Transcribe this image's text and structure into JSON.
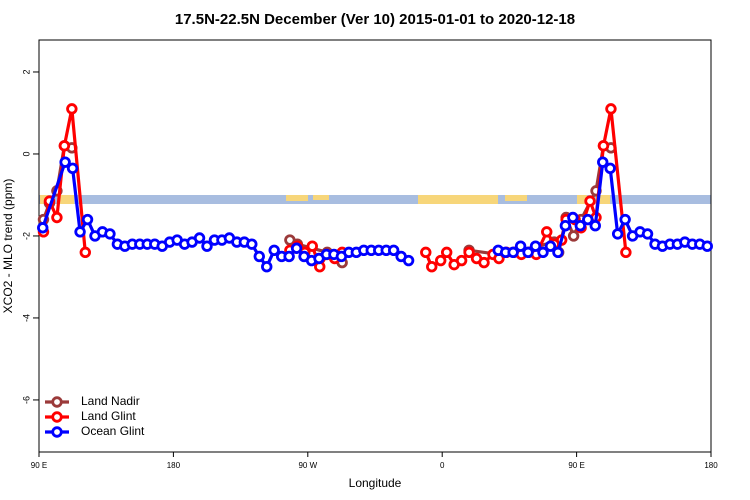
{
  "chart_data": {
    "type": "line",
    "title": "17.5N-22.5N December (Ver 10)   2015-01-01 to 2020-12-18",
    "x_label": "Longitude",
    "y_label": "XCO2 - MLO trend (ppm)",
    "xlim": [
      90,
      540
    ],
    "ylim": [
      -7.27,
      2.78
    ],
    "xticks": [
      {
        "value": 90,
        "label": "90 E"
      },
      {
        "value": 180,
        "label": "180"
      },
      {
        "value": 270,
        "label": "90 W"
      },
      {
        "value": 360,
        "label": "0"
      },
      {
        "value": 450,
        "label": "90 E"
      },
      {
        "value": 540,
        "label": "180"
      }
    ],
    "yticks": [
      -6,
      -4,
      -2,
      0,
      2
    ],
    "legend": "bottom-left",
    "series": [
      {
        "name": "Land Nadir",
        "color": "#9b3a3a",
        "x": [
          93,
          97,
          102,
          107,
          112,
          null,
          258,
          263,
          283,
          293,
          null,
          378,
          398,
          413,
          435,
          438,
          443,
          448,
          453,
          463,
          468,
          473
        ],
        "values": [
          -1.6,
          -1.2,
          -0.9,
          0.2,
          0.15,
          null,
          -2.1,
          -2.2,
          -2.4,
          -2.65,
          null,
          -2.35,
          -2.45,
          -2.35,
          -2.15,
          -2.4,
          -1.55,
          -2.0,
          -1.6,
          -0.9,
          0.2,
          0.15
        ]
      },
      {
        "name": "Land Glint",
        "color": "#ff0000",
        "x": [
          93,
          97,
          102,
          107,
          112,
          121,
          null,
          258,
          263,
          268,
          273,
          278,
          283,
          288,
          293,
          null,
          349,
          353,
          359,
          363,
          368,
          373,
          378,
          383,
          388,
          394,
          398,
          403,
          408,
          413,
          418,
          423,
          430,
          435,
          440,
          443,
          449,
          453,
          459,
          463,
          468,
          473,
          483
        ],
        "values": [
          -1.9,
          -1.15,
          -1.55,
          0.2,
          1.1,
          -2.4,
          null,
          -2.35,
          -2.25,
          -2.4,
          -2.25,
          -2.75,
          -2.45,
          -2.55,
          -2.4,
          null,
          -2.4,
          -2.75,
          -2.6,
          -2.4,
          -2.7,
          -2.6,
          -2.4,
          -2.55,
          -2.65,
          -2.45,
          -2.55,
          -2.4,
          -2.4,
          -2.45,
          -2.4,
          -2.45,
          -1.9,
          -2.2,
          -2.1,
          -1.6,
          -1.6,
          -1.8,
          -1.15,
          -1.55,
          0.2,
          1.1,
          -2.4
        ]
      },
      {
        "name": "Ocean Glint",
        "color": "#0000ff",
        "x": [
          92.5,
          107.5,
          112.5,
          117.5,
          122.5,
          127.5,
          132.5,
          137.5,
          142.5,
          147.5,
          152.5,
          157.5,
          162.5,
          167.5,
          172.5,
          177.5,
          182.5,
          187.5,
          192.5,
          197.5,
          202.5,
          207.5,
          212.5,
          217.5,
          222.5,
          227.5,
          232.5,
          237.5,
          242.5,
          247.5,
          252.5,
          257.5,
          262.5,
          267.5,
          272.5,
          277.5,
          282.5,
          287.5,
          292.5,
          297.5,
          302.5,
          307.5,
          312.5,
          317.5,
          322.5,
          327.5,
          332.5,
          337.5,
          null,
          397.5,
          402.5,
          407.5,
          412.5,
          417.5,
          422.5,
          427.5,
          432.5,
          437.5,
          442.5,
          447.5,
          452.5,
          457.5,
          462.5,
          467.5,
          472.5,
          477.5,
          482.5,
          487.5,
          492.5,
          497.5,
          502.5,
          507.5,
          512.5,
          517.5,
          522.5,
          527.5,
          532.5,
          537.5
        ],
        "values": [
          -1.8,
          -0.2,
          -0.35,
          -1.9,
          -1.6,
          -2.0,
          -1.9,
          -1.95,
          -2.2,
          -2.25,
          -2.2,
          -2.2,
          -2.2,
          -2.2,
          -2.25,
          -2.15,
          -2.1,
          -2.2,
          -2.15,
          -2.05,
          -2.25,
          -2.1,
          -2.1,
          -2.05,
          -2.15,
          -2.15,
          -2.2,
          -2.5,
          -2.75,
          -2.35,
          -2.5,
          -2.5,
          -2.3,
          -2.5,
          -2.6,
          -2.55,
          -2.45,
          -2.45,
          -2.5,
          -2.4,
          -2.4,
          -2.35,
          -2.35,
          -2.35,
          -2.35,
          -2.35,
          -2.5,
          -2.6,
          null,
          -2.35,
          -2.4,
          -2.4,
          -2.25,
          -2.4,
          -2.25,
          -2.4,
          -2.25,
          -2.4,
          -1.75,
          -1.55,
          -1.75,
          -1.6,
          -1.75,
          -0.2,
          -0.35,
          -1.95,
          -1.6,
          -2.0,
          -1.9,
          -1.95,
          -2.2,
          -2.25,
          -2.2,
          -2.2,
          -2.15,
          -2.2,
          -2.2,
          -2.25
        ]
      }
    ]
  }
}
